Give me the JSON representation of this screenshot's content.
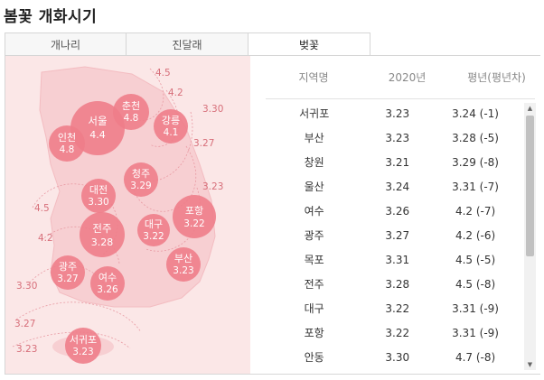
{
  "page_title": "봄꽃 개화시기",
  "tabs": [
    {
      "label": "개나리"
    },
    {
      "label": "진달래"
    },
    {
      "label": "벚꽃",
      "active": true
    }
  ],
  "table": {
    "headers": {
      "region": "지역명",
      "year": "2020년",
      "avg": "평년(평년차)"
    },
    "rows": [
      {
        "region": "서귀포",
        "date": "3.23",
        "avg": "3.24 (-1)"
      },
      {
        "region": "부산",
        "date": "3.23",
        "avg": "3.28 (-5)"
      },
      {
        "region": "창원",
        "date": "3.21",
        "avg": "3.29 (-8)"
      },
      {
        "region": "울산",
        "date": "3.24",
        "avg": "3.31 (-7)"
      },
      {
        "region": "여수",
        "date": "3.26",
        "avg": "4.2 (-7)"
      },
      {
        "region": "광주",
        "date": "3.27",
        "avg": "4.2 (-6)"
      },
      {
        "region": "목포",
        "date": "3.31",
        "avg": "4.5 (-5)"
      },
      {
        "region": "전주",
        "date": "3.28",
        "avg": "4.5 (-8)"
      },
      {
        "region": "대구",
        "date": "3.22",
        "avg": "3.31 (-9)"
      },
      {
        "region": "포항",
        "date": "3.22",
        "avg": "3.31 (-9)"
      },
      {
        "region": "안동",
        "date": "3.30",
        "avg": "4.7 (-8)"
      }
    ]
  },
  "map": {
    "bubble_color": "#ee7d8a",
    "land_color": "#f7cfd2",
    "background_color": "#fbe7e7",
    "cities": [
      {
        "name": "서울",
        "date": "4.4"
      },
      {
        "name": "춘천",
        "date": "4.8"
      },
      {
        "name": "강릉",
        "date": "4.1"
      },
      {
        "name": "인천",
        "date": "4.8"
      },
      {
        "name": "청주",
        "date": "3.29"
      },
      {
        "name": "대전",
        "date": "3.30"
      },
      {
        "name": "포항",
        "date": "3.22"
      },
      {
        "name": "대구",
        "date": "3.22"
      },
      {
        "name": "전주",
        "date": "3.28"
      },
      {
        "name": "부산",
        "date": "3.23"
      },
      {
        "name": "광주",
        "date": "3.27"
      },
      {
        "name": "여수",
        "date": "3.26"
      },
      {
        "name": "서귀포",
        "date": "3.23"
      }
    ],
    "isoline_labels": [
      "4.5",
      "4.2",
      "3.30",
      "3.27",
      "3.23",
      "4.5",
      "4.2",
      "3.30",
      "3.27",
      "3.23"
    ]
  }
}
